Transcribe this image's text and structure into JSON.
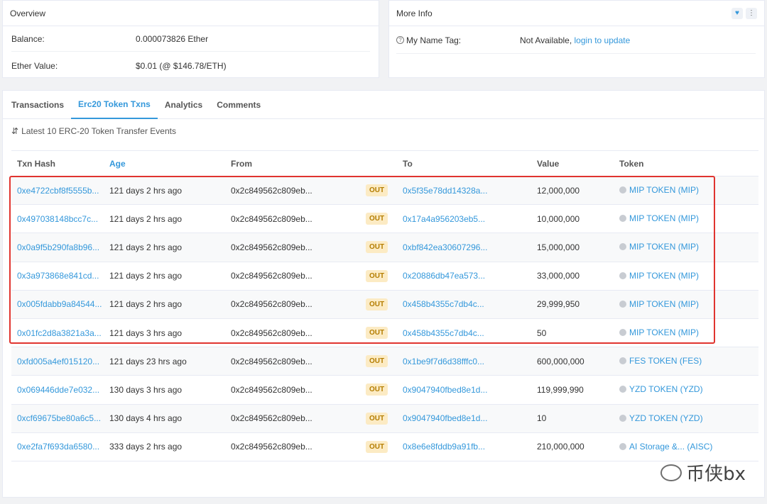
{
  "overview": {
    "title": "Overview",
    "rows": [
      {
        "label": "Balance:",
        "value": "0.000073826 Ether"
      },
      {
        "label": "Ether Value:",
        "value": "$0.01 (@ $146.78/ETH)"
      }
    ]
  },
  "more_info": {
    "title": "More Info",
    "name_tag_label": "My Name Tag:",
    "name_tag_value": "Not Available,",
    "name_tag_link": "login to update"
  },
  "tabs": [
    "Transactions",
    "Erc20 Token Txns",
    "Analytics",
    "Comments"
  ],
  "subheading": "Latest 10 ERC-20 Token Transfer Events",
  "table": {
    "headers": [
      "Txn Hash",
      "Age",
      "From",
      "",
      "To",
      "Value",
      "Token"
    ],
    "rows": [
      {
        "hash": "0xe4722cbf8f5555b...",
        "age": "121 days 2 hrs ago",
        "from": "0x2c849562c809eb...",
        "dir": "OUT",
        "to": "0x5f35e78dd14328a...",
        "value": "12,000,000",
        "token": "MIP TOKEN (MIP)"
      },
      {
        "hash": "0x497038148bcc7c...",
        "age": "121 days 2 hrs ago",
        "from": "0x2c849562c809eb...",
        "dir": "OUT",
        "to": "0x17a4a956203eb5...",
        "value": "10,000,000",
        "token": "MIP TOKEN (MIP)"
      },
      {
        "hash": "0x0a9f5b290fa8b96...",
        "age": "121 days 2 hrs ago",
        "from": "0x2c849562c809eb...",
        "dir": "OUT",
        "to": "0xbf842ea30607296...",
        "value": "15,000,000",
        "token": "MIP TOKEN (MIP)"
      },
      {
        "hash": "0x3a973868e841cd...",
        "age": "121 days 2 hrs ago",
        "from": "0x2c849562c809eb...",
        "dir": "OUT",
        "to": "0x20886db47ea573...",
        "value": "33,000,000",
        "token": "MIP TOKEN (MIP)"
      },
      {
        "hash": "0x005fdabb9a84544...",
        "age": "121 days 2 hrs ago",
        "from": "0x2c849562c809eb...",
        "dir": "OUT",
        "to": "0x458b4355c7db4c...",
        "value": "29,999,950",
        "token": "MIP TOKEN (MIP)"
      },
      {
        "hash": "0x01fc2d8a3821a3a...",
        "age": "121 days 3 hrs ago",
        "from": "0x2c849562c809eb...",
        "dir": "OUT",
        "to": "0x458b4355c7db4c...",
        "value": "50",
        "token": "MIP TOKEN (MIP)"
      },
      {
        "hash": "0xfd005a4ef015120...",
        "age": "121 days 23 hrs ago",
        "from": "0x2c849562c809eb...",
        "dir": "OUT",
        "to": "0x1be9f7d6d38fffc0...",
        "value": "600,000,000",
        "token": "FES TOKEN (FES)"
      },
      {
        "hash": "0x069446dde7e032...",
        "age": "130 days 3 hrs ago",
        "from": "0x2c849562c809eb...",
        "dir": "OUT",
        "to": "0x9047940fbed8e1d...",
        "value": "119,999,990",
        "token": "YZD TOKEN (YZD)"
      },
      {
        "hash": "0xcf69675be80a6c5...",
        "age": "130 days 4 hrs ago",
        "from": "0x2c849562c809eb...",
        "dir": "OUT",
        "to": "0x9047940fbed8e1d...",
        "value": "10",
        "token": "YZD TOKEN (YZD)"
      },
      {
        "hash": "0xe2fa7f693da6580...",
        "age": "333 days 2 hrs ago",
        "from": "0x2c849562c809eb...",
        "dir": "OUT",
        "to": "0x8e6e8fddb9a91fb...",
        "value": "210,000,000",
        "token": "AI Storage &... (AISC)"
      }
    ]
  },
  "watermark": "币侠bx"
}
